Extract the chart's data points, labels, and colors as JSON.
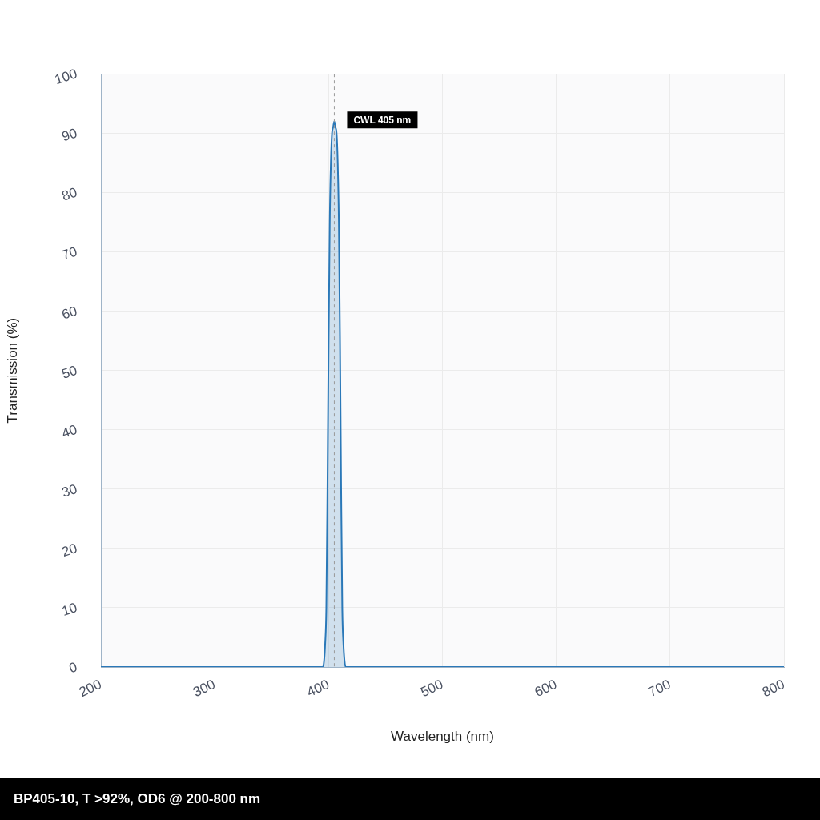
{
  "chart_data": {
    "type": "area",
    "xlabel": "Wavelength (nm)",
    "ylabel": "Transmission (%)",
    "x": [
      200,
      394,
      395,
      396,
      397,
      398,
      399,
      400,
      401,
      402,
      403,
      404,
      405,
      406,
      407,
      408,
      409,
      410,
      411,
      412,
      413,
      414,
      415,
      416,
      800
    ],
    "values": [
      0,
      0,
      0,
      1,
      4,
      10,
      30,
      55,
      75,
      85,
      90,
      91,
      92,
      91,
      90,
      85,
      75,
      55,
      30,
      10,
      4,
      1,
      0,
      0,
      0
    ],
    "color": "#2a78b8",
    "xlim": [
      200,
      800
    ],
    "xticks": [
      200,
      300,
      400,
      500,
      600,
      700,
      800
    ],
    "ylim": [
      0,
      100
    ],
    "yticks": [
      0,
      10,
      20,
      30,
      40,
      50,
      60,
      70,
      80,
      90,
      100
    ],
    "grid": true,
    "legend": false,
    "marker": "none",
    "line_style": "solid",
    "ref_lines": [
      {
        "axis": "x",
        "value": 405,
        "label": "CWL 405 nm",
        "color": "#9a9a9a",
        "line_style": "dashed"
      }
    ],
    "annotations": [
      "BP405-10, T >92%, OD6 @ 200-800 nm"
    ]
  }
}
